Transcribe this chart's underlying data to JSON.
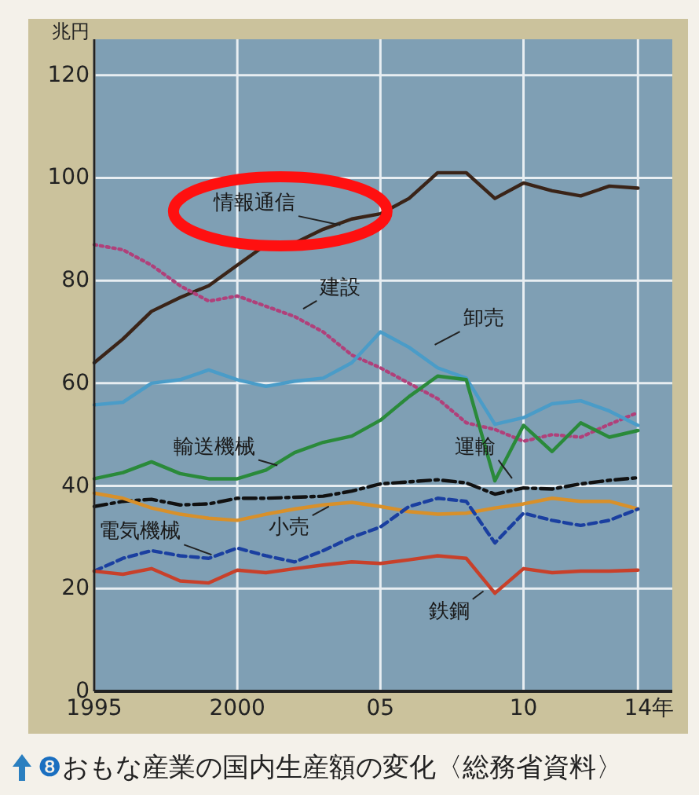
{
  "chart_data": {
    "type": "line",
    "title": "❽おもな産業の国内生産額の変化〈総務省資料〉",
    "ylabel": "兆円",
    "x": [
      1995,
      1996,
      1997,
      1998,
      1999,
      2000,
      2001,
      2002,
      2003,
      2004,
      2005,
      2006,
      2007,
      2008,
      2009,
      2010,
      2011,
      2012,
      2013,
      2014
    ],
    "xlim": [
      1995,
      2015.2
    ],
    "xticks": [
      1995,
      2000,
      {
        "value": 2005,
        "label": "05"
      },
      {
        "value": 2010,
        "label": "10"
      },
      {
        "value": 2014,
        "label": "14"
      }
    ],
    "xlabel": "年",
    "ylim": [
      0,
      127
    ],
    "yticks": [
      0,
      20,
      40,
      60,
      80,
      100,
      120
    ],
    "grid": true,
    "series": [
      {
        "name": "情報通信",
        "color": "#3a2418",
        "line_style": "solid",
        "values": [
          64,
          68.6,
          74,
          76.7,
          79,
          83,
          87,
          87.3,
          90,
          92,
          93,
          96,
          101,
          101,
          96,
          99,
          97.5,
          96.5,
          98.4,
          98
        ]
      },
      {
        "name": "建設",
        "color": "#b0407a",
        "line_style": "dotted",
        "values": [
          87,
          86,
          83,
          79,
          76,
          77,
          75,
          73,
          70,
          65.5,
          63,
          60,
          57,
          52.3,
          51,
          48.7,
          50,
          49.5,
          52,
          54.3
        ]
      },
      {
        "name": "卸売",
        "color": "#4a9cc8",
        "line_style": "solid",
        "values": [
          55.8,
          56.3,
          60,
          60.7,
          62.6,
          60.7,
          59.4,
          60.4,
          61,
          64,
          70,
          67,
          63,
          61,
          52,
          53.3,
          56,
          56.6,
          54.6,
          51.8
        ]
      },
      {
        "name": "輸送機械",
        "color": "#2a8a3a",
        "line_style": "solid",
        "values": [
          41.4,
          42.6,
          44.7,
          42.4,
          41.4,
          41.4,
          43.1,
          46.5,
          48.5,
          49.7,
          52.8,
          57.4,
          61.4,
          60.7,
          41,
          51.8,
          46.7,
          52.3,
          49.5,
          50.8
        ]
      },
      {
        "name": "運輸",
        "color": "#111111",
        "line_style": "dashdot",
        "values": [
          36,
          37,
          37.4,
          36.3,
          36.5,
          37.6,
          37.6,
          37.8,
          38,
          39,
          40.4,
          40.8,
          41.2,
          40.6,
          38.4,
          39.6,
          39.4,
          40.4,
          41.1,
          41.6
        ]
      },
      {
        "name": "小売",
        "color": "#d8902a",
        "line_style": "solid",
        "values": [
          38.6,
          37.6,
          35.7,
          34.5,
          33.7,
          33.3,
          34.5,
          35.5,
          36.3,
          36.8,
          36,
          35,
          34.5,
          34.7,
          35.7,
          36.5,
          37.6,
          37,
          37,
          35.5
        ]
      },
      {
        "name": "電気機械",
        "color": "#1a3fa0",
        "line_style": "dashed",
        "values": [
          23.4,
          25.9,
          27.4,
          26.4,
          25.9,
          27.9,
          26.4,
          25.2,
          27.4,
          30,
          32,
          36,
          37.6,
          37,
          28.9,
          34.7,
          33.3,
          32.3,
          33.3,
          35.5
        ]
      },
      {
        "name": "鉄鋼",
        "color": "#c8402a",
        "line_style": "solid",
        "values": [
          23.4,
          22.8,
          23.9,
          21.5,
          21.1,
          23.6,
          23.1,
          23.9,
          24.6,
          25.2,
          24.9,
          25.6,
          26.4,
          25.9,
          19.1,
          23.9,
          23.1,
          23.4,
          23.4,
          23.6
        ]
      }
    ]
  }
}
